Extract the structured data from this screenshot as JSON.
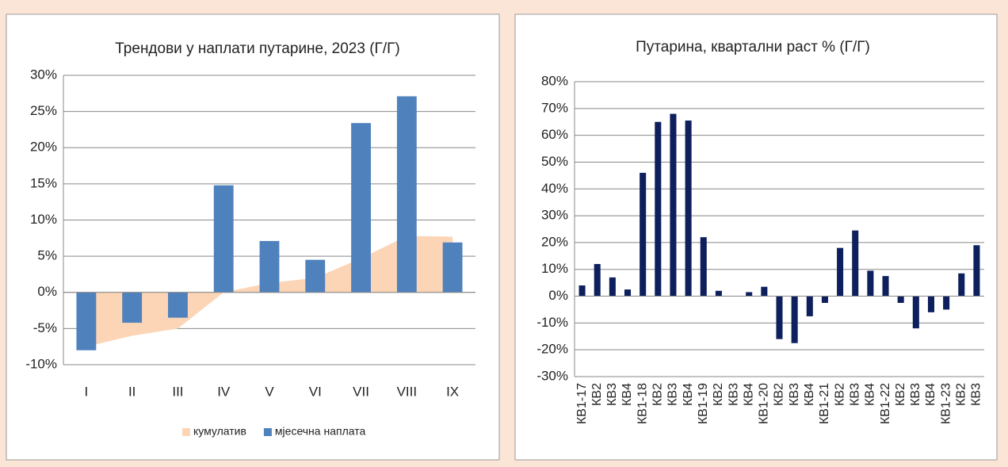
{
  "chart_data": [
    {
      "type": "bar",
      "title": "Трендови у наплати путарине, 2023 (Г/Г)",
      "categories": [
        "I",
        "II",
        "III",
        "IV",
        "V",
        "VI",
        "VII",
        "VIII",
        "IX"
      ],
      "series": [
        {
          "name": "кумулатив",
          "type": "area",
          "color": "#fbd5b5",
          "values": [
            -7.5,
            -6,
            -5,
            0,
            1.3,
            2,
            4.7,
            7.8,
            7.7
          ]
        },
        {
          "name": "мјесечна наплата",
          "type": "bar",
          "color": "#4f81bd",
          "values": [
            -8,
            -4.2,
            -3.5,
            14.8,
            7.1,
            4.5,
            23.4,
            27.1,
            6.9
          ]
        }
      ],
      "ylim": [
        -10,
        30
      ],
      "yticks": [
        {
          "value": -10,
          "label": "-10%"
        },
        {
          "value": -5,
          "label": "-5%"
        },
        {
          "value": 0,
          "label": "0%"
        },
        {
          "value": 5,
          "label": "5%"
        },
        {
          "value": 10,
          "label": "10%"
        },
        {
          "value": 15,
          "label": "15%"
        },
        {
          "value": 20,
          "label": "20%"
        },
        {
          "value": 25,
          "label": "25%"
        },
        {
          "value": 30,
          "label": "30%"
        }
      ],
      "grid": true,
      "legend": "bottom"
    },
    {
      "type": "bar",
      "title": "Путарина, квартални раст  % (Г/Г)",
      "categories": [
        "КВ1-17",
        "КВ2",
        "КВ3",
        "КВ4",
        "КВ1-18",
        "КВ2",
        "КВ3",
        "КВ4",
        "КВ1-19",
        "КВ2",
        "КВ3",
        "КВ4",
        "КВ1-20",
        "КВ2",
        "КВ3",
        "КВ4",
        "КВ1-21",
        "КВ2",
        "КВ3",
        "КВ4",
        "КВ1-22",
        "КВ2",
        "КВ3",
        "КВ4",
        "КВ1-23",
        "КВ2",
        "КВ3"
      ],
      "series": [
        {
          "type": "bar",
          "color": "#0d1f5c",
          "values": [
            4,
            12,
            7,
            2.5,
            46,
            65,
            68,
            65.5,
            22,
            2,
            0,
            1.5,
            3.5,
            -16,
            -17.5,
            -7.5,
            -2.5,
            18,
            24.5,
            9.5,
            7.5,
            -2.5,
            -12,
            -6,
            -5,
            8.5,
            19
          ]
        }
      ],
      "ylim": [
        -30,
        80
      ],
      "yticks": [
        {
          "value": -30,
          "label": "-30%"
        },
        {
          "value": -20,
          "label": "-20%"
        },
        {
          "value": -10,
          "label": "-10%"
        },
        {
          "value": 0,
          "label": "0%"
        },
        {
          "value": 10,
          "label": "10%"
        },
        {
          "value": 20,
          "label": "20%"
        },
        {
          "value": 30,
          "label": "30%"
        },
        {
          "value": 40,
          "label": "40%"
        },
        {
          "value": 50,
          "label": "50%"
        },
        {
          "value": 60,
          "label": "60%"
        },
        {
          "value": 70,
          "label": "70%"
        },
        {
          "value": 80,
          "label": "80%"
        }
      ],
      "grid": true
    }
  ]
}
